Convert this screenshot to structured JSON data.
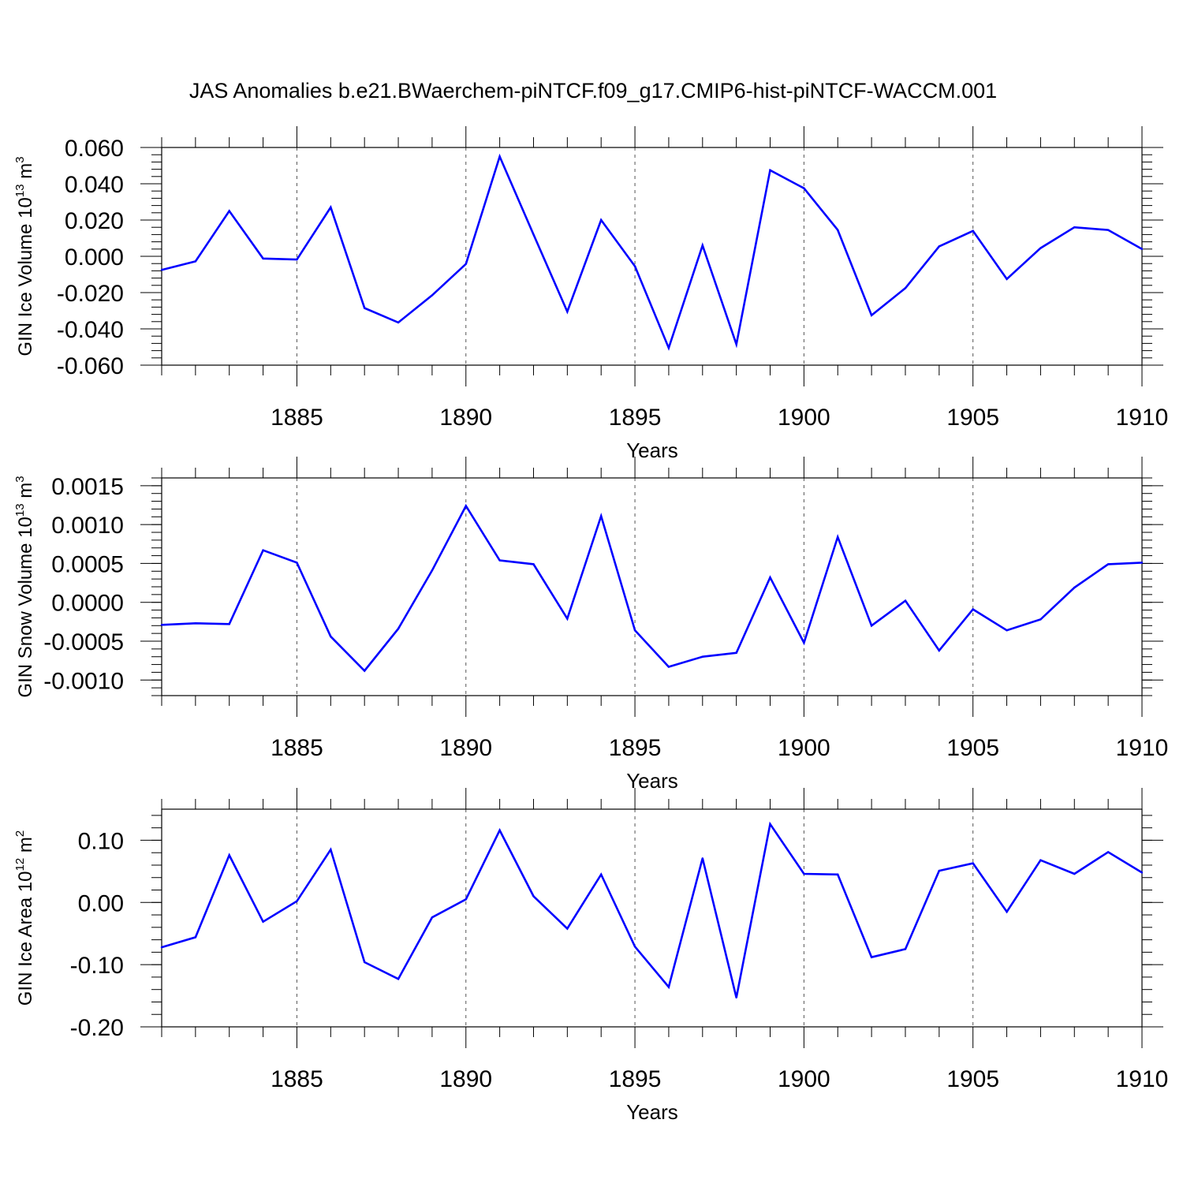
{
  "chart_data": {
    "type": "line",
    "title": "JAS Anomalies b.e21.BWaerchem-piNTCF.f09_g17.CMIP6-hist-piNTCF-WACCM.001",
    "line_color": "#0000ff",
    "grid": "dashed vertical at every 5 years",
    "x": [
      1881,
      1882,
      1883,
      1884,
      1885,
      1886,
      1887,
      1888,
      1889,
      1890,
      1891,
      1892,
      1893,
      1894,
      1895,
      1896,
      1897,
      1898,
      1899,
      1900,
      1901,
      1902,
      1903,
      1904,
      1905,
      1906,
      1907,
      1908,
      1909,
      1910
    ],
    "panels": [
      {
        "ylabel": "GIN Ice Volume 10",
        "ylabel_exp": "13",
        "ylabel_unit": "m",
        "ylabel_unit_exp": "3",
        "xlabel": "Years",
        "xlim": [
          1881,
          1910
        ],
        "xticks": [
          "1885",
          "1890",
          "1895",
          "1900",
          "1905",
          "1910"
        ],
        "ylim": [
          -0.06,
          0.06
        ],
        "yticks": [
          "0.060",
          "0.040",
          "0.020",
          "0.000",
          "-0.020",
          "-0.040",
          "-0.060"
        ],
        "values": [
          -0.0075,
          -0.0028,
          0.025,
          -0.0012,
          -0.0018,
          0.027,
          -0.0285,
          -0.0365,
          -0.0215,
          -0.0042,
          0.055,
          0.012,
          -0.0305,
          0.02,
          -0.0055,
          -0.0505,
          0.006,
          -0.0485,
          0.0475,
          0.0375,
          0.0145,
          -0.0325,
          -0.0175,
          0.0055,
          0.014,
          -0.0125,
          0.0045,
          0.016,
          0.0145,
          0.004
        ]
      },
      {
        "ylabel": "GIN Snow Volume 10",
        "ylabel_exp": "13",
        "ylabel_unit": "m",
        "ylabel_unit_exp": "3",
        "xlabel": "Years",
        "xlim": [
          1881,
          1910
        ],
        "xticks": [
          "1885",
          "1890",
          "1895",
          "1900",
          "1905",
          "1910"
        ],
        "ylim": [
          -0.0012,
          0.0016
        ],
        "yticks": [
          "0.0015",
          "0.0010",
          "0.0005",
          "0.0000",
          "-0.0005",
          "-0.0010"
        ],
        "values": [
          -0.00029,
          -0.00027,
          -0.00028,
          0.00067,
          0.00051,
          -0.00044,
          -0.00088,
          -0.00034,
          0.00041,
          0.00124,
          0.00054,
          0.00049,
          -0.00021,
          0.00111,
          -0.00036,
          -0.00083,
          -0.0007,
          -0.00065,
          0.00032,
          -0.00052,
          0.00084,
          -0.0003,
          2e-05,
          -0.00062,
          -9e-05,
          -0.00036,
          -0.00022,
          0.00019,
          0.00049,
          0.00051
        ]
      },
      {
        "ylabel": "GIN Ice Area 10",
        "ylabel_exp": "12",
        "ylabel_unit": "m",
        "ylabel_unit_exp": "2",
        "xlabel": "Years",
        "xlim": [
          1881,
          1910
        ],
        "xticks": [
          "1885",
          "1890",
          "1895",
          "1900",
          "1905",
          "1910"
        ],
        "ylim": [
          -0.2,
          0.15
        ],
        "yticks": [
          "0.10",
          "0.00",
          "-0.10",
          "-0.20"
        ],
        "values": [
          -0.072,
          -0.056,
          0.076,
          -0.031,
          0.002,
          0.085,
          -0.096,
          -0.123,
          -0.024,
          0.005,
          0.116,
          0.01,
          -0.042,
          0.045,
          -0.071,
          -0.136,
          0.071,
          -0.153,
          0.126,
          0.046,
          0.045,
          -0.088,
          -0.075,
          0.051,
          0.063,
          -0.015,
          0.068,
          0.046,
          0.081,
          0.048
        ]
      }
    ]
  }
}
